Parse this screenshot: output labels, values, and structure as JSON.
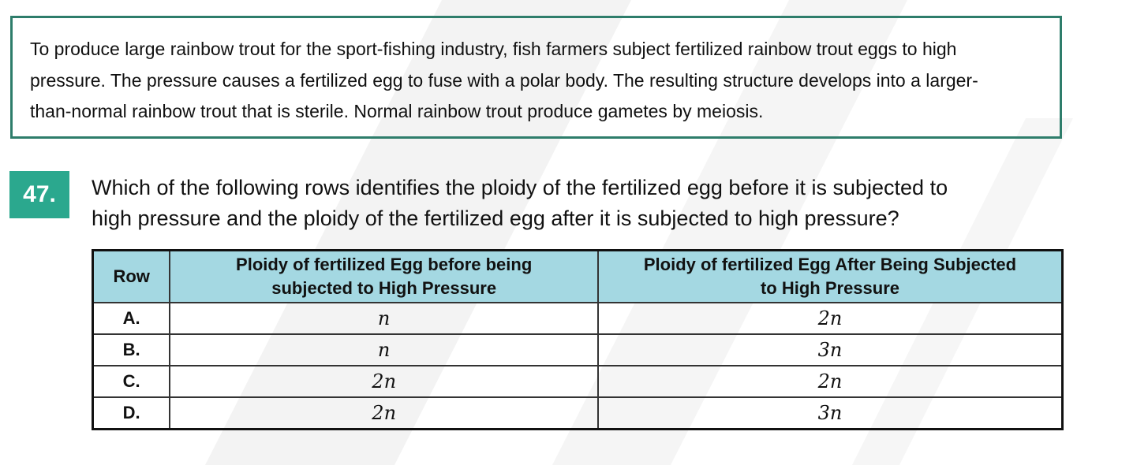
{
  "passage": "To produce large rainbow trout for the sport-fishing industry, fish farmers subject fertilized rainbow trout eggs to high pressure. The pressure causes a fertilized egg to fuse with a polar body. The resulting structure develops into a larger-than-normal rainbow trout that is sterile. Normal rainbow trout produce gametes by meiosis.",
  "passage_lines": [
    "To produce large rainbow trout for the sport-fishing industry, fish farmers subject fertilized rainbow trout eggs to high",
    "pressure. The pressure causes a fertilized egg to fuse with a polar body. The resulting structure develops into a larger-",
    "than-normal rainbow trout that is sterile. Normal rainbow trout produce gametes by meiosis."
  ],
  "question": {
    "number": "47.",
    "lines": [
      "Which of the following rows identifies the ploidy of the fertilized egg before it is subjected to",
      "high pressure and the ploidy of the fertilized egg after it is subjected to high pressure?"
    ]
  },
  "table": {
    "headers": {
      "row": "Row",
      "before_line1": "Ploidy of fertilized Egg before being",
      "before_line2": "subjected to High Pressure",
      "after_line1": "Ploidy of fertilized Egg After Being Subjected",
      "after_line2": "to High Pressure"
    },
    "rows": [
      {
        "label": "A.",
        "before": "n",
        "after": "2n"
      },
      {
        "label": "B.",
        "before": "n",
        "after": "3n"
      },
      {
        "label": "C.",
        "before": "2n",
        "after": "2n"
      },
      {
        "label": "D.",
        "before": "2n",
        "after": "3n"
      }
    ]
  },
  "colors": {
    "passage_border": "#2e7d6b",
    "number_badge": "#2ba88e",
    "header_fill": "#a4d8e2"
  }
}
